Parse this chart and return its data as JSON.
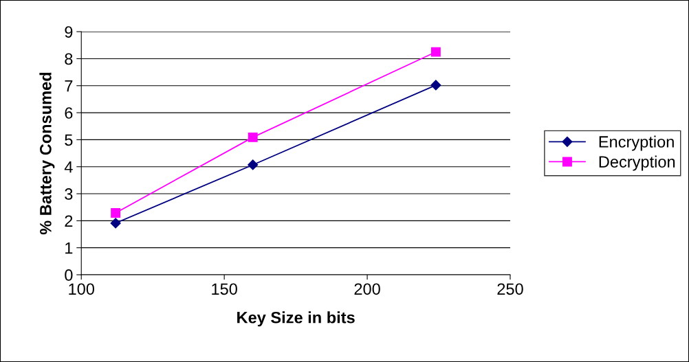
{
  "chart_data": {
    "type": "line",
    "xlabel": "Key Size in bits",
    "ylabel": "% Battery Consumed",
    "xlim": [
      100,
      250
    ],
    "xticks": [
      100,
      150,
      200,
      250
    ],
    "ylim": [
      0,
      9
    ],
    "yticks": [
      0,
      1,
      2,
      3,
      4,
      5,
      6,
      7,
      8,
      9
    ],
    "grid": "y",
    "legend": "right",
    "line_style": "solid",
    "series": [
      {
        "name": "Encryption",
        "color": "#000080",
        "marker": "diamond",
        "x": [
          112,
          160,
          224
        ],
        "values": [
          1.91,
          4.07,
          7.02
        ]
      },
      {
        "name": "Decryption",
        "color": "#ff00ff",
        "marker": "square",
        "x": [
          112,
          160,
          224
        ],
        "values": [
          2.29,
          5.09,
          8.25
        ]
      }
    ]
  }
}
